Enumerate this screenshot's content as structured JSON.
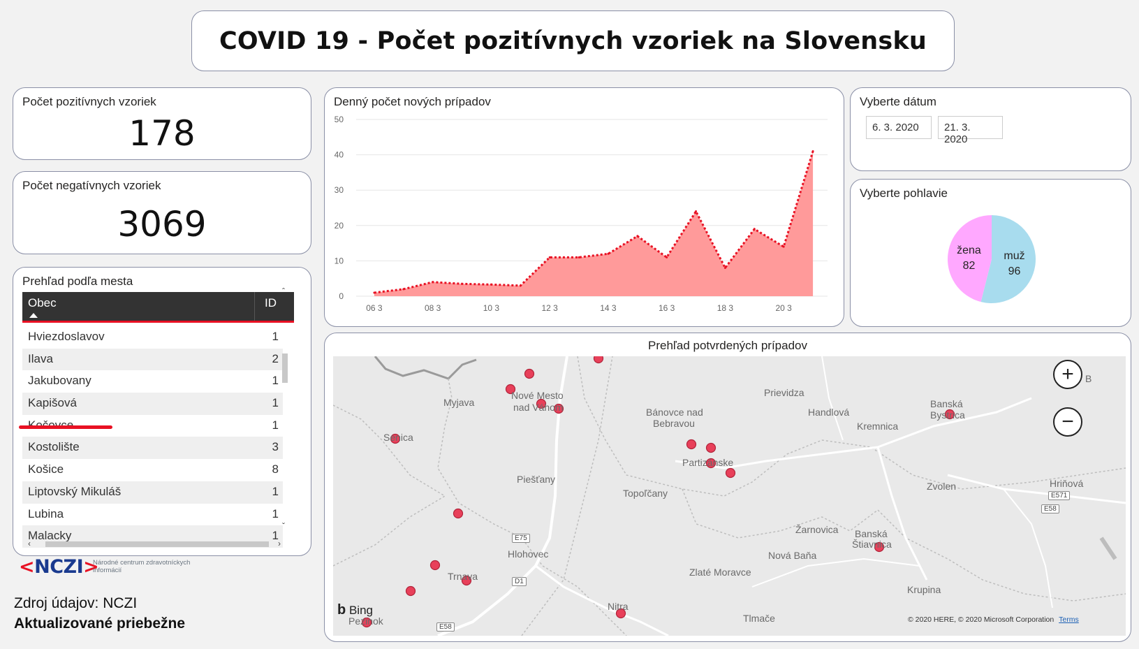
{
  "title": "COVID 19 - Počet pozitívnych vzoriek na Slovensku",
  "positive": {
    "label": "Počet pozitívnych vzoriek",
    "value": "178"
  },
  "negative": {
    "label": "Počet negatívnych vzoriek",
    "value": "3069"
  },
  "city_table": {
    "label": "Prehľad podľa mesta",
    "headers": {
      "obec": "Obec",
      "id": "ID"
    },
    "rows": [
      {
        "obec": "Hviezdoslavov",
        "id": "1"
      },
      {
        "obec": "Ilava",
        "id": "2"
      },
      {
        "obec": "Jakubovany",
        "id": "1"
      },
      {
        "obec": "Kapišová",
        "id": "1"
      },
      {
        "obec": "Kočovce",
        "id": "1"
      },
      {
        "obec": "Kostolište",
        "id": "3"
      },
      {
        "obec": "Košice",
        "id": "8"
      },
      {
        "obec": "Liptovský Mikuláš",
        "id": "1"
      },
      {
        "obec": "Lubina",
        "id": "1"
      },
      {
        "obec": "Malacky",
        "id": "1"
      }
    ]
  },
  "date_filter": {
    "label": "Vyberte dátum",
    "start": "6. 3. 2020",
    "end": "21. 3. 2020"
  },
  "gender_filter": {
    "label": "Vyberte pohlavie"
  },
  "chart_data": [
    {
      "type": "area",
      "title": "Denný počet nových prípadov",
      "x": [
        "06 3",
        "07 3",
        "08 3",
        "09 3",
        "10 3",
        "11 3",
        "12 3",
        "13 3",
        "14 3",
        "15 3",
        "16 3",
        "17 3",
        "18 3",
        "19 3",
        "20 3",
        "21 3"
      ],
      "tick_labels": [
        "06 3",
        "08 3",
        "10 3",
        "12 3",
        "14 3",
        "16 3",
        "18 3",
        "20 3"
      ],
      "values": [
        1,
        2,
        4,
        3.5,
        3.3,
        3,
        11,
        11,
        12,
        17,
        11,
        24,
        8,
        19,
        14,
        41
      ],
      "ylim": [
        0,
        50
      ],
      "yticks": [
        0,
        10,
        20,
        30,
        40,
        50
      ],
      "grid": true,
      "colors": {
        "fill": "#ff9a9a",
        "line": "#e81123"
      }
    },
    {
      "type": "pie",
      "series": [
        {
          "name": "žena",
          "value": 82,
          "color": "#ffa8ff"
        },
        {
          "name": "muž",
          "value": 96,
          "color": "#a8dcee"
        }
      ]
    }
  ],
  "map": {
    "title": "Prehľad potvrdených prípadov",
    "places": [
      "Myjava",
      "Nové Mesto",
      "nad Váhom",
      "Senica",
      "Bánovce nad",
      "Bebravou",
      "Prievidza",
      "Handlová",
      "Banská",
      "Bystrica",
      "Kremnica",
      "Partizánske",
      "Piešťany",
      "Topoľčany",
      "Zvolen",
      "Hriňová",
      "Žarnovica",
      "Banská",
      "Štiavnica",
      "Hlohovec",
      "Nová Baňa",
      "Zlaté Moravce",
      "Trnava",
      "Krupina",
      "Nitra",
      "Tlmače",
      "Pezinok",
      "B"
    ],
    "roads": [
      "E75",
      "D1",
      "E58",
      "E571",
      "E58"
    ],
    "attribution": "© 2020 HERE, © 2020 Microsoft Corporation",
    "terms": "Terms",
    "bing": "Bing",
    "zoom_in": "+",
    "zoom_out": "−"
  },
  "logo": {
    "nczi_open": "<",
    "nczi": "NCZI",
    "nczi_close": ">",
    "subtitle": "Národné centrum zdravotníckych informácií"
  },
  "source": "Zdroj údajov: NCZI",
  "updated": "Aktualizované priebežne",
  "colors": {
    "accent": "#e81123",
    "header_bg": "#333333",
    "marker": "#e8405a"
  }
}
